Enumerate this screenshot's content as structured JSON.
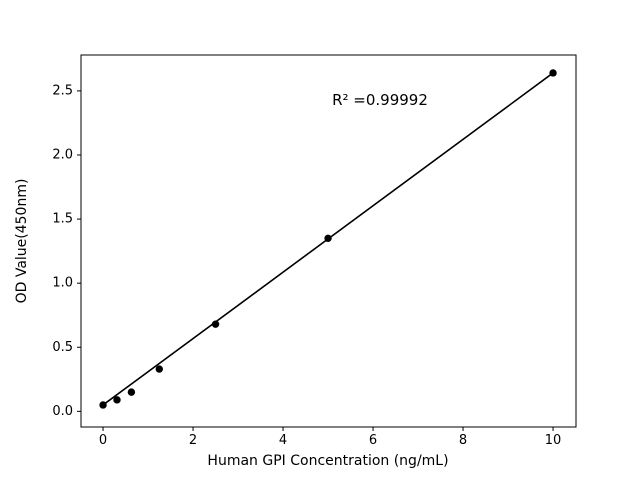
{
  "chart_data": {
    "type": "scatter",
    "title": "",
    "xlabel": "Human GPI Concentration (ng/mL)",
    "ylabel": "OD Value(450nm)",
    "x": [
      0,
      0.31,
      0.63,
      1.25,
      2.5,
      5,
      10
    ],
    "y": [
      0.05,
      0.09,
      0.15,
      0.33,
      0.68,
      1.35,
      2.64
    ],
    "fit_line": {
      "x": [
        0,
        10
      ],
      "y": [
        0.05,
        2.64
      ]
    },
    "r_squared": 0.99992,
    "annotation": {
      "text": "R² =0.99992",
      "x": 6.15,
      "y": 2.43
    },
    "xticks": [
      0,
      2,
      4,
      6,
      8,
      10
    ],
    "xtick_labels": [
      "0",
      "2",
      "4",
      "6",
      "8",
      "10"
    ],
    "yticks": [
      0.0,
      0.5,
      1.0,
      1.5,
      2.0,
      2.5
    ],
    "ytick_labels": [
      "0.0",
      "0.5",
      "1.0",
      "1.5",
      "2.0",
      "2.5"
    ],
    "xlim": [
      -0.49,
      10.51
    ],
    "ylim": [
      -0.122,
      2.78
    ],
    "grid": false,
    "legend": "none",
    "marker_color": "#000000",
    "line_color": "#000000",
    "axis_color": "#000000",
    "background_color": "#ffffff"
  }
}
